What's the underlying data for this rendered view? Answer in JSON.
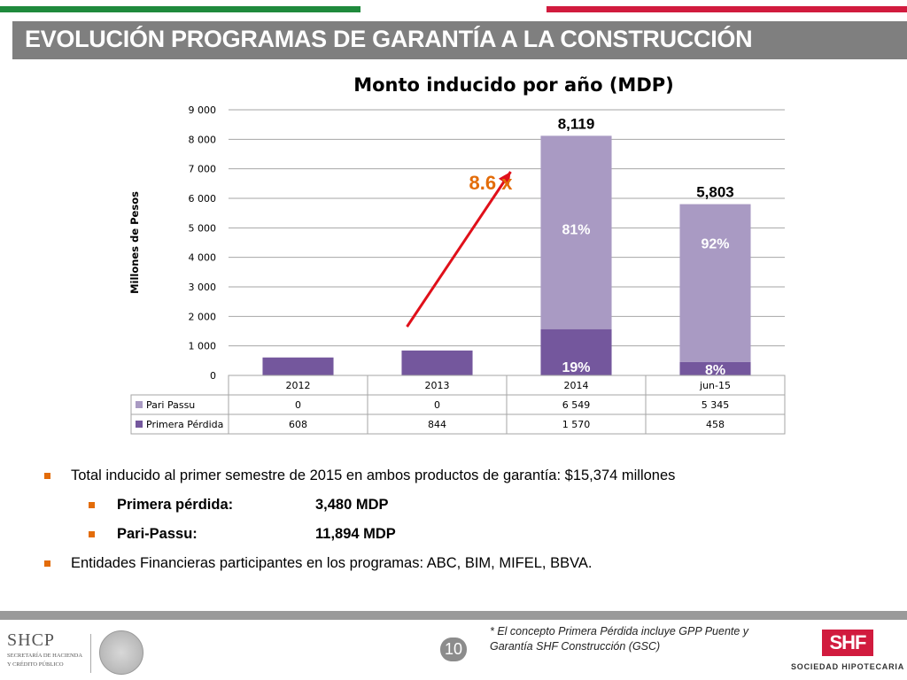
{
  "slide": {
    "title": "EVOLUCIÓN PROGRAMAS DE GARANTÍA A LA CONSTRUCCIÓN",
    "page_number": "10"
  },
  "colors": {
    "stripe_green": "#1f8a3c",
    "stripe_red": "#d11b3e",
    "title_bar": "#7f7f7f",
    "pari_passu": "#a99ac3",
    "primera_perdida": "#74579d",
    "bullet_marker": "#e36c09",
    "arrow": "#e0101a",
    "growth_label": "#e36c09"
  },
  "chart_data": {
    "type": "bar",
    "stacked": true,
    "title": "Monto inducido por año (MDP)",
    "ylabel": "Millones de Pesos",
    "xlabel": "",
    "ylim": [
      0,
      9000
    ],
    "yticks": [
      0,
      1000,
      2000,
      3000,
      4000,
      5000,
      6000,
      7000,
      8000,
      9000
    ],
    "ytick_labels": [
      "0",
      "1 000",
      "2 000",
      "3 000",
      "4 000",
      "5 000",
      "6 000",
      "7 000",
      "8 000",
      "9 000"
    ],
    "grid": true,
    "categories": [
      "2012",
      "2013",
      "2014",
      "jun-15"
    ],
    "series": [
      {
        "name": "Primera Pérdida",
        "values": [
          608,
          844,
          1570,
          458
        ],
        "table_labels": [
          "608",
          "844",
          "1 570",
          "458"
        ],
        "color": "#74579d"
      },
      {
        "name": "Pari Passu",
        "values": [
          0,
          0,
          6549,
          5345
        ],
        "table_labels": [
          "0",
          "0",
          "6 549",
          "5 345"
        ],
        "color": "#a99ac3"
      }
    ],
    "totals": [
      {
        "category": "2014",
        "label": "8,119"
      },
      {
        "category": "jun-15",
        "label": "5,803"
      }
    ],
    "segment_labels": [
      {
        "category": "2014",
        "series": "Pari Passu",
        "label": "81%"
      },
      {
        "category": "2014",
        "series": "Primera Pérdida",
        "label": "19%"
      },
      {
        "category": "jun-15",
        "series": "Pari Passu",
        "label": "92%"
      },
      {
        "category": "jun-15",
        "series": "Primera Pérdida",
        "label": "8%"
      }
    ],
    "annotation": {
      "label": "8.6 x"
    },
    "legend": "data-table",
    "table_row_order": [
      "Pari Passu",
      "Primera Pérdida"
    ]
  },
  "bullets": {
    "total": "Total inducido al primer semestre de 2015 en ambos productos de garantía: $15,374 millones",
    "primera_label": "Primera pérdida:",
    "primera_value": "3,480 MDP",
    "pari_label": "Pari-Passu:",
    "pari_value": "11,894 MDP",
    "entidades": "Entidades Financieras participantes en los programas: ABC, BIM, MIFEL, BBVA."
  },
  "footer": {
    "footnote": "* El concepto Primera Pérdida incluye GPP Puente y Garantía SHF Construcción (GSC)",
    "shcp_logo": "SHCP",
    "shcp_sub1": "SECRETARÍA DE HACIENDA",
    "shcp_sub2": "Y CRÉDITO PÚBLICO",
    "shf_logo": "SHF",
    "shf_name": "SOCIEDAD HIPOTECARIA FEDERAL"
  }
}
